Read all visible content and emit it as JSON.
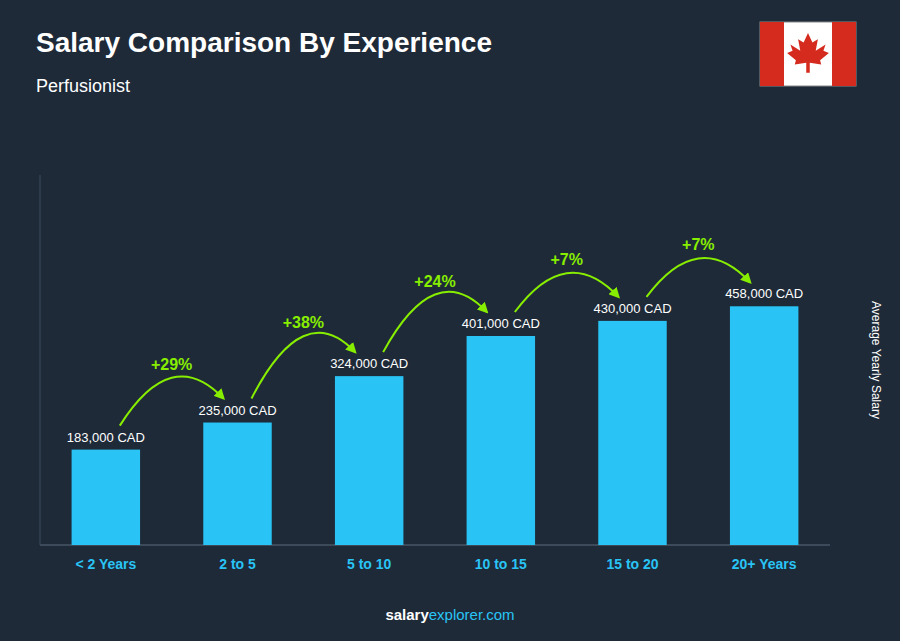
{
  "chart_data": {
    "type": "bar",
    "title": "Salary Comparison By Experience",
    "subtitle": "Perfusionist",
    "ylabel": "Average Yearly Salary",
    "categories": [
      "< 2 Years",
      "2 to 5",
      "5 to 10",
      "10 to 15",
      "15 to 20",
      "20+ Years"
    ],
    "values": [
      183000,
      235000,
      324000,
      401000,
      430000,
      458000
    ],
    "value_labels": [
      "183,000 CAD",
      "235,000 CAD",
      "324,000 CAD",
      "401,000 CAD",
      "430,000 CAD",
      "458,000 CAD"
    ],
    "data_labels": true,
    "color": "#29c4f5",
    "ylim": [
      0,
      709900
    ],
    "tick_labels": "x",
    "grid": false,
    "annotations": [
      {
        "text": "+29%",
        "color": "#88ee00"
      },
      {
        "text": "+38%",
        "color": "#88ee00"
      },
      {
        "text": "+24%",
        "color": "#88ee00"
      },
      {
        "text": "+7%",
        "color": "#88ee00"
      },
      {
        "text": "+7%",
        "color": "#88ee00"
      }
    ],
    "footer": [
      "salary",
      "explorer.com"
    ]
  }
}
